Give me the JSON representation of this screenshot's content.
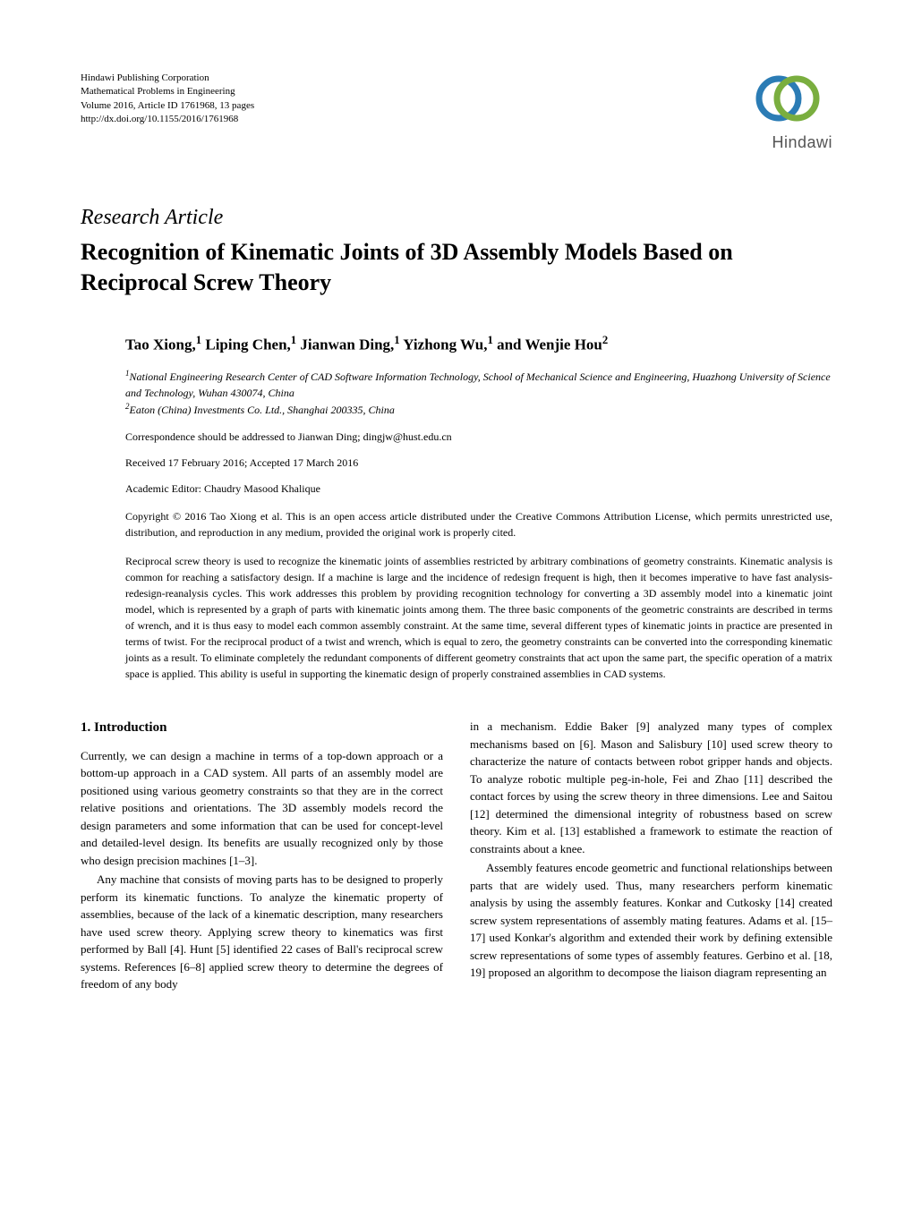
{
  "publisher": {
    "line1": "Hindawi Publishing Corporation",
    "line2": "Mathematical Problems in Engineering",
    "line3": "Volume 2016, Article ID 1761968, 13 pages",
    "line4": "http://dx.doi.org/10.1155/2016/1761968",
    "logo_name": "Hindawi"
  },
  "article_type": "Research Article",
  "title": "Recognition of Kinematic Joints of 3D Assembly Models Based on Reciprocal Screw Theory",
  "authors_html": "Tao Xiong,<sup>1</sup> Liping Chen,<sup>1</sup> Jianwan Ding,<sup>1</sup> Yizhong Wu,<sup>1</sup> and Wenjie Hou<sup>2</sup>",
  "affiliations": {
    "aff1": "National Engineering Research Center of CAD Software Information Technology, School of Mechanical Science and Engineering, Huazhong University of Science and Technology, Wuhan 430074, China",
    "aff2": "Eaton (China) Investments Co. Ltd., Shanghai 200335, China"
  },
  "correspondence": "Correspondence should be addressed to Jianwan Ding; dingjw@hust.edu.cn",
  "dates": "Received 17 February 2016; Accepted 17 March 2016",
  "editor": "Academic Editor: Chaudry Masood Khalique",
  "copyright": "Copyright © 2016 Tao Xiong et al. This is an open access article distributed under the Creative Commons Attribution License, which permits unrestricted use, distribution, and reproduction in any medium, provided the original work is properly cited.",
  "abstract": "Reciprocal screw theory is used to recognize the kinematic joints of assemblies restricted by arbitrary combinations of geometry constraints. Kinematic analysis is common for reaching a satisfactory design. If a machine is large and the incidence of redesign frequent is high, then it becomes imperative to have fast analysis-redesign-reanalysis cycles. This work addresses this problem by providing recognition technology for converting a 3D assembly model into a kinematic joint model, which is represented by a graph of parts with kinematic joints among them. The three basic components of the geometric constraints are described in terms of wrench, and it is thus easy to model each common assembly constraint. At the same time, several different types of kinematic joints in practice are presented in terms of twist. For the reciprocal product of a twist and wrench, which is equal to zero, the geometry constraints can be converted into the corresponding kinematic joints as a result. To eliminate completely the redundant components of different geometry constraints that act upon the same part, the specific operation of a matrix space is applied. This ability is useful in supporting the kinematic design of properly constrained assemblies in CAD systems.",
  "section1": {
    "heading": "1. Introduction",
    "left": {
      "p1": "Currently, we can design a machine in terms of a top-down approach or a bottom-up approach in a CAD system. All parts of an assembly model are positioned using various geometry constraints so that they are in the correct relative positions and orientations. The 3D assembly models record the design parameters and some information that can be used for concept-level and detailed-level design. Its benefits are usually recognized only by those who design precision machines [1–3].",
      "p2": "Any machine that consists of moving parts has to be designed to properly perform its kinematic functions. To analyze the kinematic property of assemblies, because of the lack of a kinematic description, many researchers have used screw theory. Applying screw theory to kinematics was first performed by Ball [4]. Hunt [5] identified 22 cases of Ball's reciprocal screw systems. References [6–8] applied screw theory to determine the degrees of freedom of any body"
    },
    "right": {
      "p1": "in a mechanism. Eddie Baker [9] analyzed many types of complex mechanisms based on [6]. Mason and Salisbury [10] used screw theory to characterize the nature of contacts between robot gripper hands and objects. To analyze robotic multiple peg-in-hole, Fei and Zhao [11] described the contact forces by using the screw theory in three dimensions. Lee and Saitou [12] determined the dimensional integrity of robustness based on screw theory. Kim et al. [13] established a framework to estimate the reaction of constraints about a knee.",
      "p2": "Assembly features encode geometric and functional relationships between parts that are widely used. Thus, many researchers perform kinematic analysis by using the assembly features. Konkar and Cutkosky [14] created screw system representations of assembly mating features. Adams et al. [15–17] used Konkar's algorithm and extended their work by defining extensible screw representations of some types of assembly features. Gerbino et al. [18, 19] proposed an algorithm to decompose the liaison diagram representing an"
    }
  },
  "colors": {
    "text": "#000000",
    "background": "#ffffff",
    "logo_blue": "#2b7cb5",
    "logo_green": "#7aae3f",
    "logo_text": "#555555"
  }
}
